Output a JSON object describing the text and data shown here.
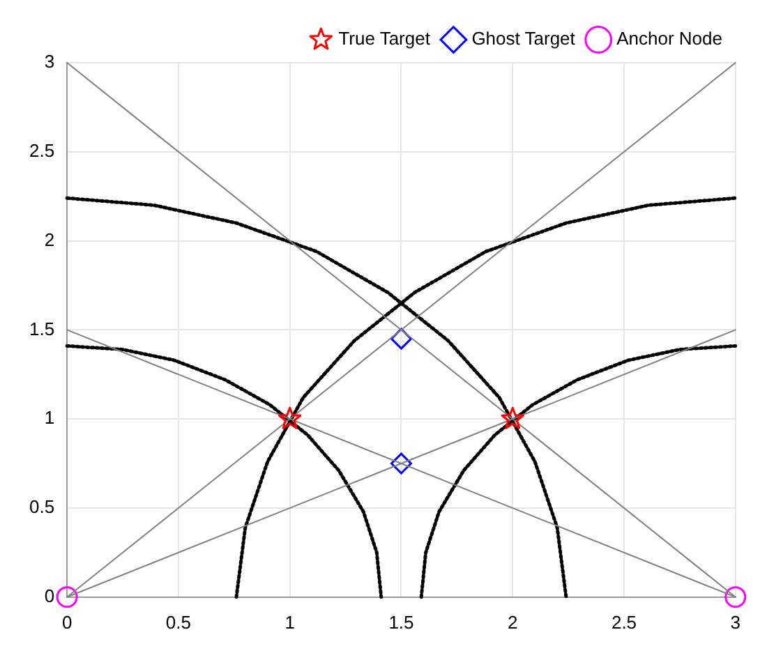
{
  "chart_data": {
    "type": "line",
    "xlim": [
      0,
      3
    ],
    "ylim": [
      0,
      3
    ],
    "xticks": [
      0,
      0.5,
      1,
      1.5,
      2,
      2.5,
      3
    ],
    "yticks": [
      0,
      0.5,
      1,
      1.5,
      2,
      2.5,
      3
    ],
    "grid": true,
    "legend": "top right",
    "series": [
      {
        "color": "#808080",
        "line_style": "solid",
        "marker": "none",
        "x": [
          0,
          3
        ],
        "values": [
          0,
          3
        ]
      },
      {
        "color": "#808080",
        "line_style": "solid",
        "marker": "none",
        "x": [
          0,
          3
        ],
        "values": [
          0,
          1.5
        ]
      },
      {
        "color": "#808080",
        "line_style": "solid",
        "marker": "none",
        "x": [
          0,
          3
        ],
        "values": [
          3,
          0
        ]
      },
      {
        "color": "#808080",
        "line_style": "solid",
        "marker": "none",
        "x": [
          0,
          3
        ],
        "values": [
          1.5,
          0
        ]
      },
      {
        "type": "line",
        "color": "#000000",
        "line_style": "dotted",
        "marker": "none",
        "x": [
          0,
          0.25,
          0.48,
          0.71,
          0.91,
          1.08,
          1.22,
          1.33,
          1.39,
          1.41
        ],
        "values": [
          1.41,
          1.39,
          1.33,
          1.22,
          1.08,
          0.91,
          0.71,
          0.48,
          0.25,
          0
        ]
      },
      {
        "type": "line",
        "color": "#000000",
        "line_style": "dotted",
        "marker": "none",
        "x": [
          0,
          0.39,
          0.76,
          1.12,
          1.44,
          1.71,
          1.94,
          2.1,
          2.2,
          2.24
        ],
        "values": [
          2.24,
          2.2,
          2.1,
          1.94,
          1.71,
          1.44,
          1.12,
          0.76,
          0.39,
          0
        ]
      },
      {
        "type": "line",
        "color": "#000000",
        "line_style": "dotted",
        "marker": "none",
        "x": [
          1.59,
          1.61,
          1.67,
          1.78,
          1.92,
          2.09,
          2.29,
          2.52,
          2.75,
          3
        ],
        "values": [
          0,
          0.25,
          0.48,
          0.71,
          0.91,
          1.08,
          1.22,
          1.33,
          1.39,
          1.41
        ]
      },
      {
        "type": "line",
        "color": "#000000",
        "line_style": "dotted",
        "marker": "none",
        "x": [
          0.76,
          0.8,
          0.9,
          1.06,
          1.29,
          1.56,
          1.88,
          2.24,
          2.61,
          3
        ],
        "values": [
          0,
          0.39,
          0.76,
          1.12,
          1.44,
          1.71,
          1.94,
          2.1,
          2.2,
          2.24
        ]
      },
      {
        "type": "scatter",
        "name": "True Target",
        "color": "#ff0000",
        "marker": "star",
        "x": [
          1,
          2
        ],
        "values": [
          1,
          1
        ]
      },
      {
        "type": "scatter",
        "name": "Ghost Target",
        "color": "#0000ff",
        "marker": "diamond",
        "x": [
          1.5,
          1.5
        ],
        "values": [
          1.45,
          0.75
        ]
      },
      {
        "type": "scatter",
        "name": "Anchor Node",
        "color": "#ff00ff",
        "marker": "circle",
        "x": [
          0,
          3
        ],
        "values": [
          0,
          0
        ]
      }
    ]
  }
}
